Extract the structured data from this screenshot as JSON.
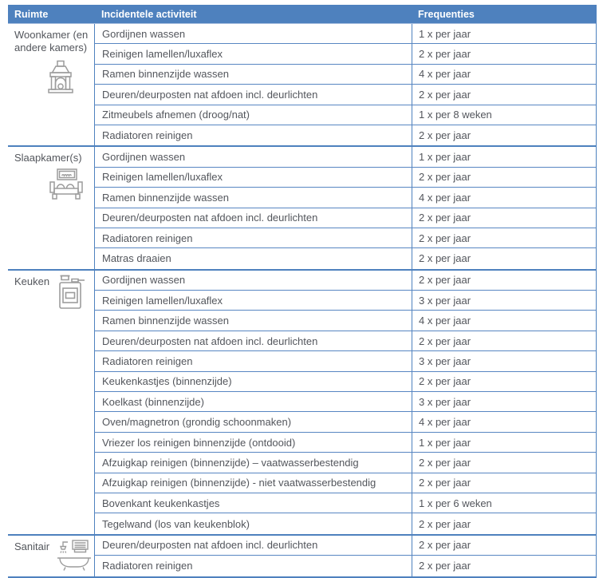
{
  "table": {
    "headers": [
      {
        "label": "Ruimte"
      },
      {
        "label": "Incidentele activiteit"
      },
      {
        "label": "Frequenties"
      }
    ],
    "sections": [
      {
        "room": "Woonkamer (en andere kamers)",
        "icon": "fireplace-icon",
        "rows": [
          {
            "activity": "Gordijnen wassen",
            "frequency": "1 x per jaar"
          },
          {
            "activity": "Reinigen lamellen/luxaflex",
            "frequency": "2 x per jaar"
          },
          {
            "activity": "Ramen binnenzijde wassen",
            "frequency": "4 x per jaar"
          },
          {
            "activity": "Deuren/deurposten nat afdoen incl. deurlichten",
            "frequency": "2 x per jaar"
          },
          {
            "activity": "Zitmeubels afnemen (droog/nat)",
            "frequency": "1 x per 8 weken"
          },
          {
            "activity": "Radiatoren reinigen",
            "frequency": "2 x per jaar"
          }
        ]
      },
      {
        "room": "Slaapkamer(s)",
        "icon": "bed-icon",
        "rows": [
          {
            "activity": "Gordijnen wassen",
            "frequency": "1 x per jaar"
          },
          {
            "activity": "Reinigen lamellen/luxaflex",
            "frequency": "2 x per jaar"
          },
          {
            "activity": "Ramen binnenzijde wassen",
            "frequency": "4 x per jaar"
          },
          {
            "activity": "Deuren/deurposten nat afdoen incl. deurlichten",
            "frequency": "2 x per jaar"
          },
          {
            "activity": "Radiatoren reinigen",
            "frequency": "2 x per jaar"
          },
          {
            "activity": "Matras draaien",
            "frequency": "2 x per jaar"
          }
        ]
      },
      {
        "room": "Keuken",
        "icon": "stove-icon",
        "rows": [
          {
            "activity": "Gordijnen wassen",
            "frequency": "2 x per jaar"
          },
          {
            "activity": "Reinigen lamellen/luxaflex",
            "frequency": "3 x per jaar"
          },
          {
            "activity": "Ramen binnenzijde wassen",
            "frequency": "4 x per jaar"
          },
          {
            "activity": "Deuren/deurposten nat afdoen incl. deurlichten",
            "frequency": "2 x per jaar"
          },
          {
            "activity": "Radiatoren reinigen",
            "frequency": "3 x per jaar"
          },
          {
            "activity": "Keukenkastjes (binnenzijde)",
            "frequency": "2 x per jaar"
          },
          {
            "activity": "Koelkast (binnenzijde)",
            "frequency": "3 x per jaar"
          },
          {
            "activity": "Oven/magnetron (grondig schoonmaken)",
            "frequency": "4 x per jaar"
          },
          {
            "activity": "Vriezer los reinigen binnenzijde (ontdooid)",
            "frequency": "1 x per jaar"
          },
          {
            "activity": "Afzuigkap reinigen (binnenzijde) – vaatwasserbestendig",
            "frequency": "2 x per jaar"
          },
          {
            "activity": "Afzuigkap reinigen (binnenzijde) - niet vaatwasserbestendig",
            "frequency": "2 x per jaar"
          },
          {
            "activity": "Bovenkant keukenkastjes",
            "frequency": "1 x per 6 weken"
          },
          {
            "activity": "Tegelwand (los van keukenblok)",
            "frequency": "2 x per jaar"
          }
        ]
      },
      {
        "room": "Sanitair",
        "icon": "bathtub-icon",
        "rows": [
          {
            "activity": "Deuren/deurposten nat afdoen incl. deurlichten",
            "frequency": "2 x per jaar"
          },
          {
            "activity": "Radiatoren reinigen",
            "frequency": "2 x per jaar"
          }
        ]
      }
    ]
  },
  "colors": {
    "header_bg": "#4e81be",
    "border": "#4e81be",
    "row_border": "#5886c2",
    "text": "#53565c",
    "header_text": "#ffffff",
    "icon": "#9c9c9c"
  }
}
